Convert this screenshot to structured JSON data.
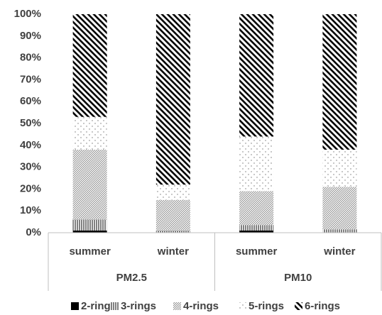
{
  "chart_data": {
    "type": "stacked-bar",
    "groups": [
      {
        "name": "PM2.5",
        "categories": [
          "summer",
          "winter"
        ]
      },
      {
        "name": "PM10",
        "categories": [
          "summer",
          "winter"
        ]
      }
    ],
    "series": [
      {
        "name": "2-rings",
        "pattern": "solid",
        "values": [
          1,
          0,
          1,
          0
        ]
      },
      {
        "name": "3-rings",
        "pattern": "vertical",
        "values": [
          5,
          1,
          2.5,
          1.5
        ]
      },
      {
        "name": "4-rings",
        "pattern": "fine-diagonal",
        "values": [
          32,
          14,
          15.5,
          19.5
        ]
      },
      {
        "name": "5-rings",
        "pattern": "dots",
        "values": [
          15,
          7,
          25,
          17
        ]
      },
      {
        "name": "6-rings",
        "pattern": "bold-diagonal",
        "values": [
          47,
          78,
          56,
          62
        ]
      }
    ],
    "ylim": [
      0,
      100
    ],
    "yticks": [
      {
        "value": 0,
        "label": "0%"
      },
      {
        "value": 10,
        "label": "10%"
      },
      {
        "value": 20,
        "label": "20%"
      },
      {
        "value": 30,
        "label": "30%"
      },
      {
        "value": 40,
        "label": "40%"
      },
      {
        "value": 50,
        "label": "50%"
      },
      {
        "value": 60,
        "label": "60%"
      },
      {
        "value": 70,
        "label": "70%"
      },
      {
        "value": 80,
        "label": "80%"
      },
      {
        "value": 90,
        "label": "90%"
      },
      {
        "value": 100,
        "label": "100%"
      }
    ],
    "legend": "bottom"
  }
}
